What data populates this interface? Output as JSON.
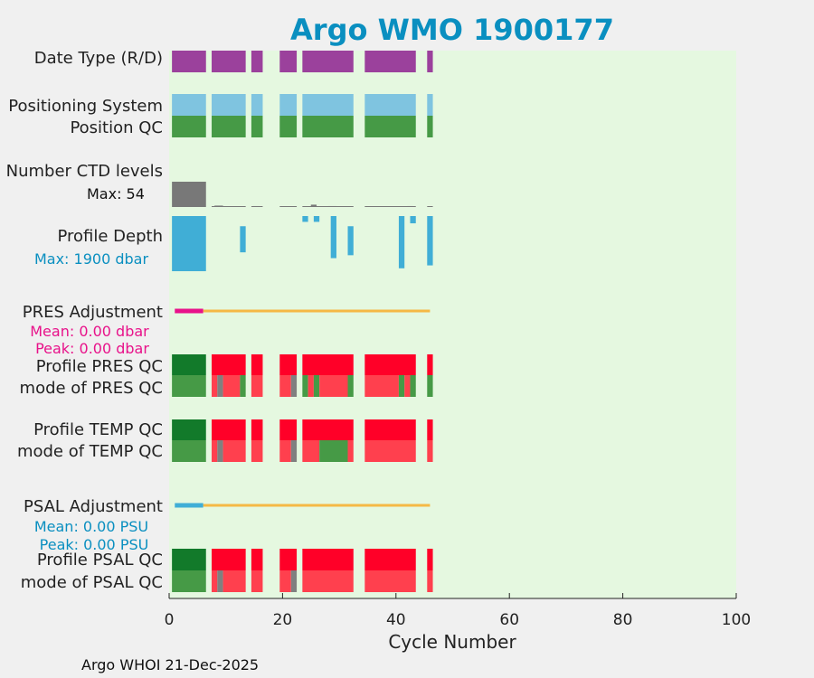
{
  "chart_data": {
    "type": "bar",
    "title": "Argo WMO 1900177",
    "xlabel": "Cycle Number",
    "xlim": [
      0,
      100
    ],
    "xticks": [
      0,
      20,
      40,
      60,
      80,
      100
    ],
    "colors": {
      "background": "#f0f0f0",
      "plot_bg": "#e5f8e0",
      "title": "#0a8fc0",
      "date_type": "#9b419c",
      "positioning": "#7fc4e0",
      "qc_good": "#469a46",
      "qc_good_dark": "#127a2a",
      "qc_bad": "#ff0028",
      "qc_bad_light": "#ff404e",
      "qc_gray": "#808080",
      "ctd_bar": "#787878",
      "depth_bar": "#40aed6",
      "pres_adj": "#e8128a",
      "psal_adj": "#40aed6",
      "adj_line": "#f5b945"
    },
    "rows": [
      {
        "id": "date_type",
        "label": "Date Type (R/D)"
      },
      {
        "id": "positioning",
        "label": "Positioning System"
      },
      {
        "id": "position_qc",
        "label": "Position QC"
      },
      {
        "id": "ctd_levels",
        "label": "Number CTD levels",
        "note": "Max: 54"
      },
      {
        "id": "profile_depth",
        "label": "Profile Depth",
        "note": "Max: 1900 dbar"
      },
      {
        "id": "pres_adj",
        "label": "PRES Adjustment",
        "note": [
          "Mean: 0.00 dbar",
          "Peak: 0.00 dbar"
        ]
      },
      {
        "id": "pres_qc",
        "label": "Profile PRES QC"
      },
      {
        "id": "pres_mode",
        "label": "mode of PRES QC"
      },
      {
        "id": "temp_qc",
        "label": "Profile TEMP QC"
      },
      {
        "id": "temp_mode",
        "label": "mode of TEMP QC"
      },
      {
        "id": "psal_adj",
        "label": "PSAL Adjustment",
        "note": [
          "Mean: 0.00 PSU",
          "Peak: 0.00 PSU"
        ]
      },
      {
        "id": "psal_qc",
        "label": "Profile PSAL QC"
      },
      {
        "id": "psal_mode",
        "label": "mode of PSAL QC"
      }
    ],
    "main_segments": [
      [
        0.5,
        6.5
      ],
      [
        7.5,
        13.5
      ],
      [
        14.5,
        16.5
      ],
      [
        19.5,
        22.5
      ],
      [
        23.5,
        32.5
      ],
      [
        34.5,
        43.5
      ],
      [
        45.5,
        46.5
      ]
    ],
    "ctd_levels": {
      "max": 54,
      "values": [
        [
          0.5,
          6.5,
          54
        ],
        [
          8,
          9.5,
          3
        ],
        [
          14.8,
          16,
          2
        ],
        [
          25,
          26,
          5
        ],
        [
          28,
          29.5,
          2
        ],
        [
          42,
          43,
          2
        ]
      ]
    },
    "profile_depth": {
      "max": 1900,
      "values": [
        [
          0.5,
          6.5,
          0,
          1900
        ],
        [
          12.5,
          13.5,
          350,
          1250
        ],
        [
          23.5,
          24.5,
          0,
          200
        ],
        [
          25.5,
          26.5,
          0,
          200
        ],
        [
          28.5,
          29.5,
          0,
          1450
        ],
        [
          31.5,
          32.5,
          350,
          1350
        ],
        [
          40.5,
          41.5,
          0,
          1800
        ],
        [
          42.5,
          43.5,
          0,
          250
        ],
        [
          45.5,
          46.5,
          0,
          1700
        ]
      ]
    },
    "pres_adj": {
      "mean": 0.0,
      "peak": 0.0,
      "marker": [
        1,
        6
      ],
      "line": [
        6,
        46
      ]
    },
    "psal_adj": {
      "mean": 0.0,
      "peak": 0.0,
      "marker": [
        1,
        6
      ],
      "line": [
        6,
        46
      ]
    },
    "qc_rows": {
      "pres_qc": [
        [
          0.5,
          6.5,
          "qc_good_dark"
        ],
        [
          7.5,
          13.5,
          "qc_bad"
        ],
        [
          14.5,
          16.5,
          "qc_bad"
        ],
        [
          19.5,
          22.5,
          "qc_bad"
        ],
        [
          23.5,
          32.5,
          "qc_bad"
        ],
        [
          34.5,
          43.5,
          "qc_bad"
        ],
        [
          45.5,
          46.5,
          "qc_bad"
        ]
      ],
      "pres_mode": [
        [
          0.5,
          6.5,
          "qc_good"
        ],
        [
          7.5,
          8.5,
          "qc_bad_light"
        ],
        [
          8.5,
          9.5,
          "qc_gray"
        ],
        [
          9.5,
          12.5,
          "qc_bad_light"
        ],
        [
          12.5,
          13.5,
          "qc_good"
        ],
        [
          14.5,
          16.5,
          "qc_bad_light"
        ],
        [
          19.5,
          21.5,
          "qc_bad_light"
        ],
        [
          21.5,
          22.5,
          "qc_gray"
        ],
        [
          23.5,
          24.5,
          "qc_good"
        ],
        [
          24.5,
          25.5,
          "qc_bad_light"
        ],
        [
          25.5,
          26.5,
          "qc_good"
        ],
        [
          26.5,
          31.5,
          "qc_bad_light"
        ],
        [
          31.5,
          32.5,
          "qc_good"
        ],
        [
          34.5,
          40.5,
          "qc_bad_light"
        ],
        [
          40.5,
          41.5,
          "qc_good"
        ],
        [
          41.5,
          42.5,
          "qc_bad_light"
        ],
        [
          42.5,
          43.5,
          "qc_good"
        ],
        [
          45.5,
          46.5,
          "qc_good"
        ]
      ],
      "temp_qc": [
        [
          0.5,
          6.5,
          "qc_good_dark"
        ],
        [
          7.5,
          13.5,
          "qc_bad"
        ],
        [
          14.5,
          16.5,
          "qc_bad"
        ],
        [
          19.5,
          22.5,
          "qc_bad"
        ],
        [
          23.5,
          32.5,
          "qc_bad"
        ],
        [
          34.5,
          43.5,
          "qc_bad"
        ],
        [
          45.5,
          46.5,
          "qc_bad"
        ]
      ],
      "temp_mode": [
        [
          0.5,
          6.5,
          "qc_good"
        ],
        [
          7.5,
          8.5,
          "qc_bad_light"
        ],
        [
          8.5,
          9.5,
          "qc_gray"
        ],
        [
          9.5,
          13.5,
          "qc_bad_light"
        ],
        [
          14.5,
          16.5,
          "qc_bad_light"
        ],
        [
          19.5,
          21.5,
          "qc_bad_light"
        ],
        [
          21.5,
          22.5,
          "qc_gray"
        ],
        [
          23.5,
          26.5,
          "qc_bad_light"
        ],
        [
          26.5,
          31.5,
          "qc_good"
        ],
        [
          31.5,
          32.5,
          "qc_bad_light"
        ],
        [
          34.5,
          43.5,
          "qc_bad_light"
        ],
        [
          45.5,
          46.5,
          "qc_bad_light"
        ]
      ],
      "psal_qc": [
        [
          0.5,
          6.5,
          "qc_good_dark"
        ],
        [
          7.5,
          13.5,
          "qc_bad"
        ],
        [
          14.5,
          16.5,
          "qc_bad"
        ],
        [
          19.5,
          22.5,
          "qc_bad"
        ],
        [
          23.5,
          32.5,
          "qc_bad"
        ],
        [
          34.5,
          43.5,
          "qc_bad"
        ],
        [
          45.5,
          46.5,
          "qc_bad"
        ]
      ],
      "psal_mode": [
        [
          0.5,
          6.5,
          "qc_good"
        ],
        [
          7.5,
          8.5,
          "qc_bad_light"
        ],
        [
          8.5,
          9.5,
          "qc_gray"
        ],
        [
          9.5,
          13.5,
          "qc_bad_light"
        ],
        [
          14.5,
          16.5,
          "qc_bad_light"
        ],
        [
          19.5,
          21.5,
          "qc_bad_light"
        ],
        [
          21.5,
          22.5,
          "qc_gray"
        ],
        [
          23.5,
          32.5,
          "qc_bad_light"
        ],
        [
          34.5,
          43.5,
          "qc_bad_light"
        ],
        [
          45.5,
          46.5,
          "qc_bad_light"
        ]
      ]
    }
  },
  "footer": "Argo WHOI 21-Dec-2025"
}
